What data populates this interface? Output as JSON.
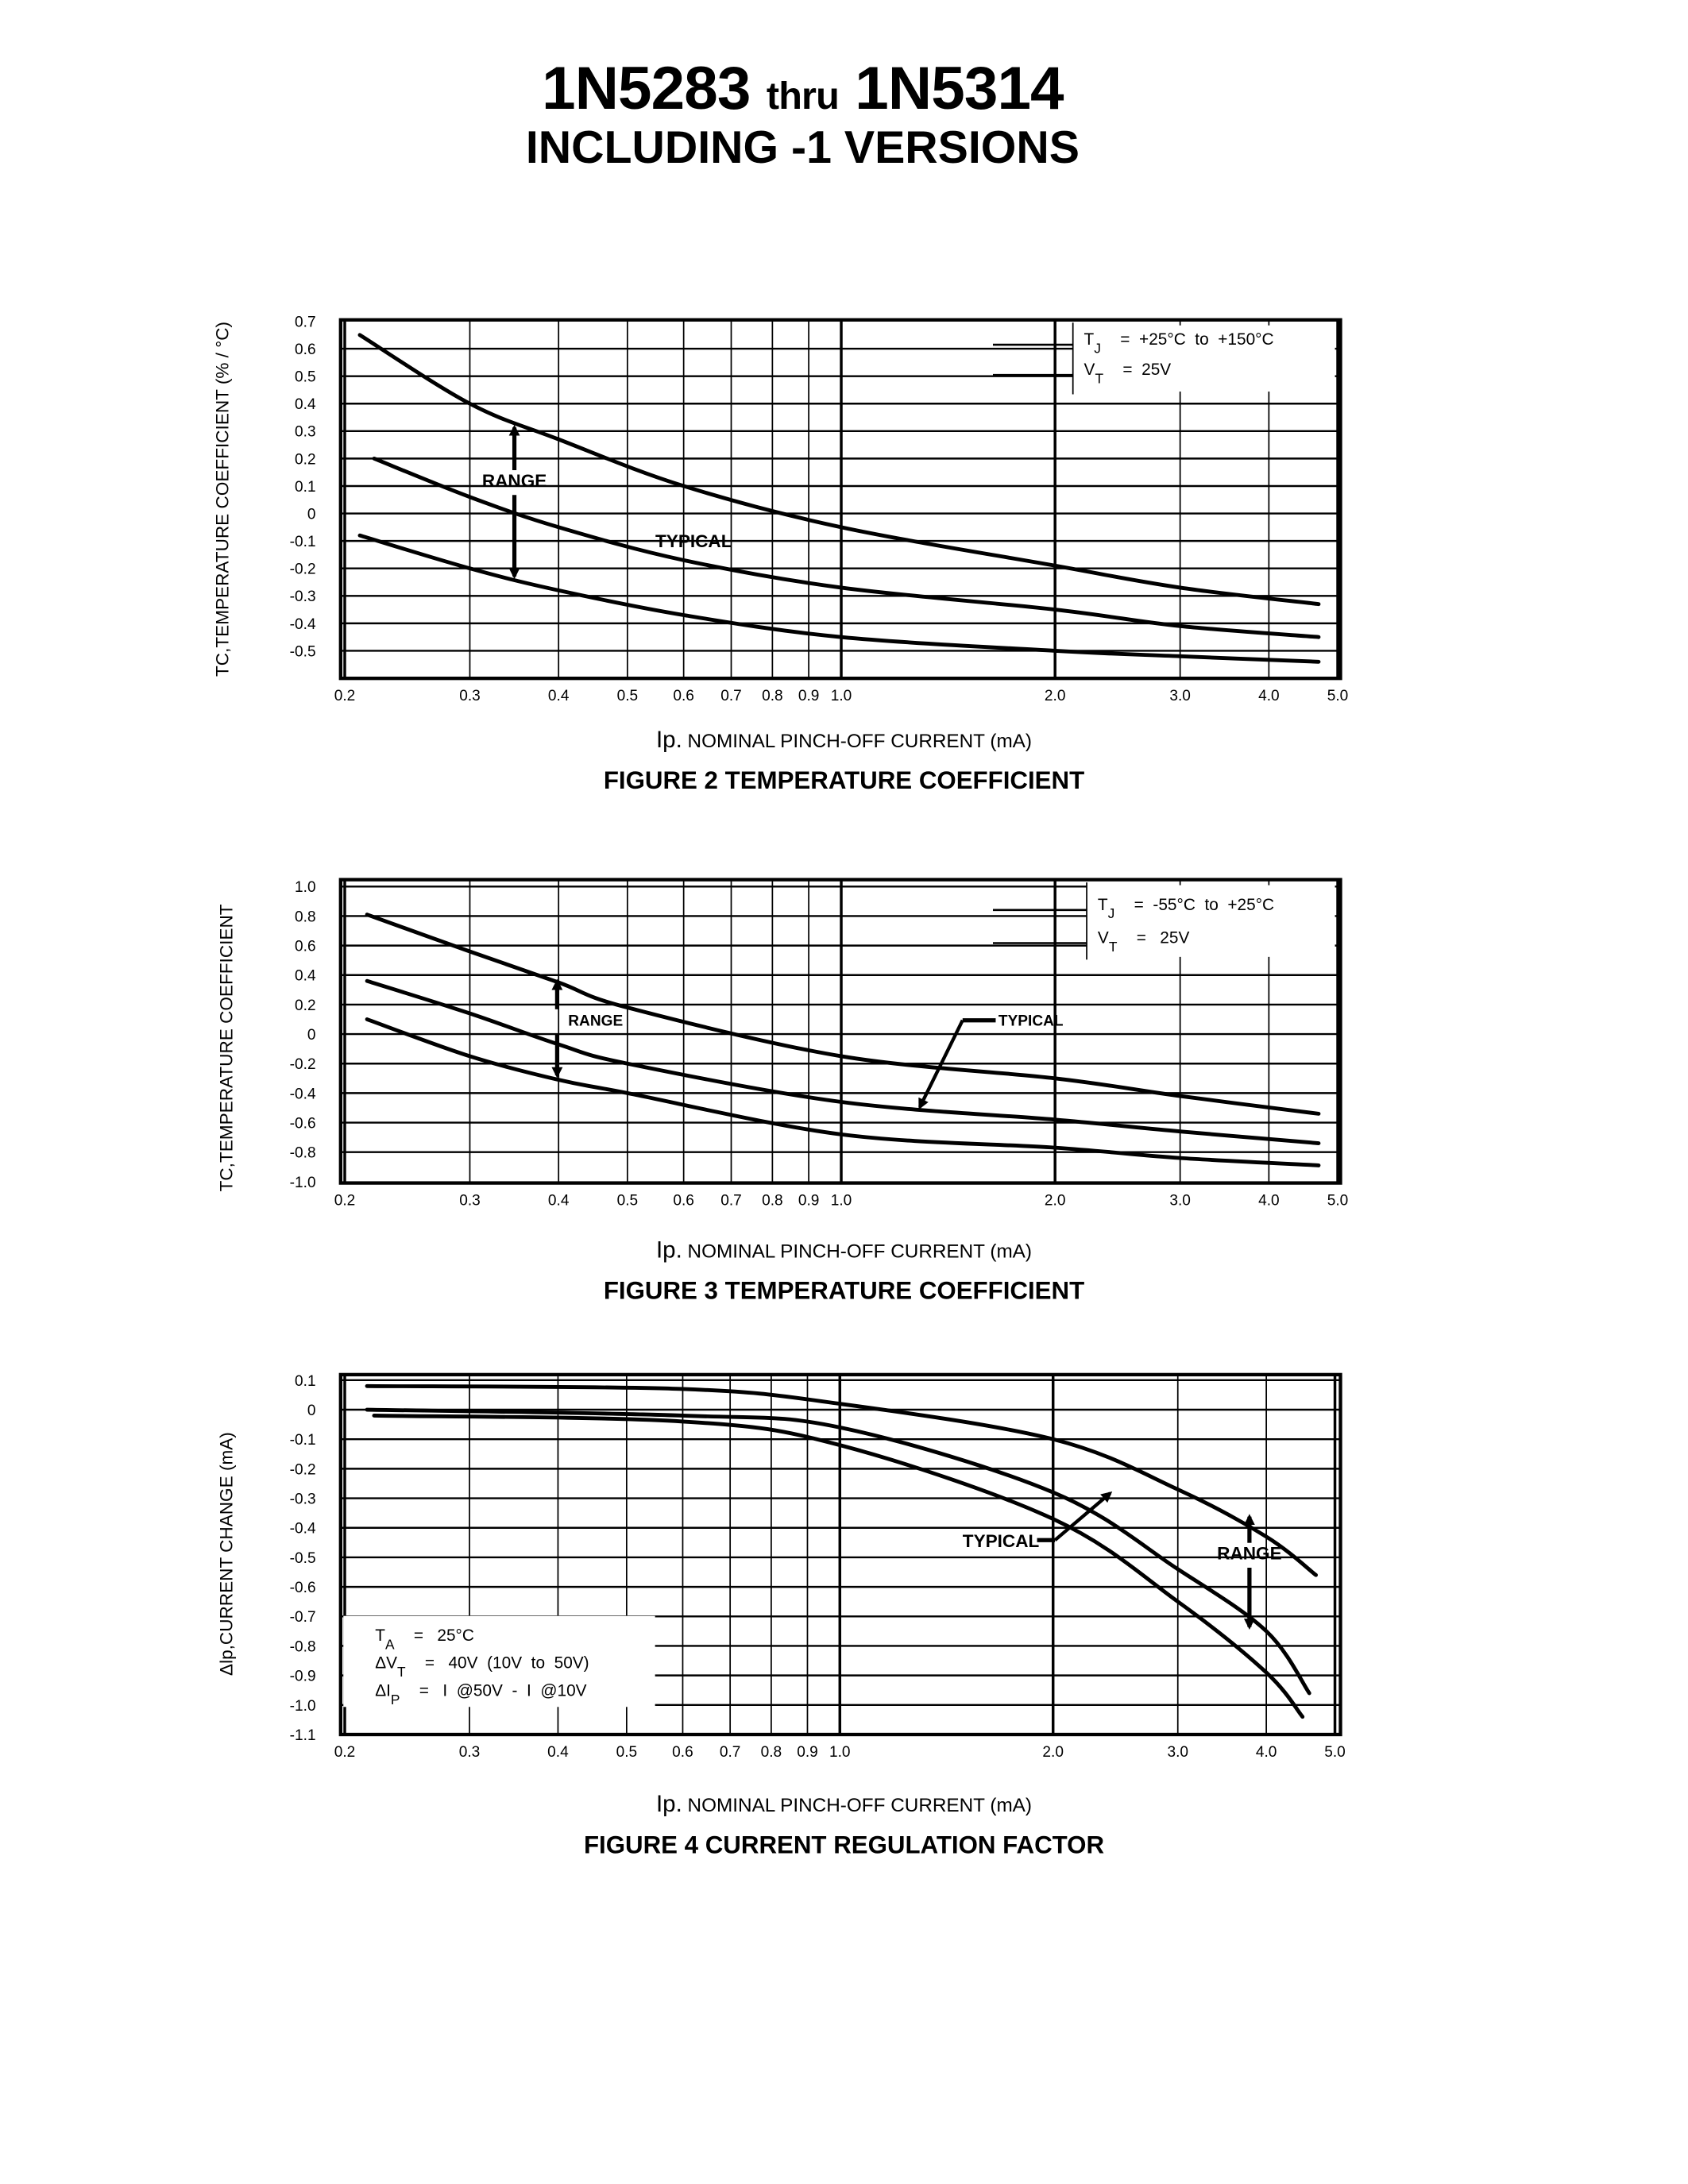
{
  "header": {
    "part_from": "1N5283",
    "thru": "thru",
    "part_to": "1N5314",
    "subtitle": "INCLUDING -1 VERSIONS"
  },
  "chart_data": [
    {
      "type": "line",
      "caption": "FIGURE 2 TEMPERATURE COEFFICIENT",
      "xlabel_prefix": "Ip.",
      "xlabel": "NOMINAL PINCH-OFF CURRENT (mA)",
      "ylabel": "TC,TEMPERATURE COEFFICIENT (% / °C)",
      "xscale": "log",
      "xlim": [
        0.2,
        5.0
      ],
      "ylim": [
        -0.6,
        0.7
      ],
      "grid": true,
      "xticks": [
        0.2,
        0.3,
        0.4,
        0.5,
        0.6,
        0.7,
        0.8,
        0.9,
        1.0,
        2.0,
        3.0,
        4.0,
        5.0
      ],
      "xtick_labels": [
        "0.2",
        "0.3",
        "0.4",
        "0.5",
        "0.6",
        "0.7",
        "0.8",
        "0.9",
        "1.0",
        "2.0",
        "3.0",
        "4.0",
        "5.0"
      ],
      "yticks": [
        0.7,
        0.6,
        0.5,
        0.4,
        0.3,
        0.2,
        0.1,
        0,
        -0.1,
        -0.2,
        -0.3,
        -0.4,
        -0.5
      ],
      "ytick_labels": [
        "0.7",
        "0.6",
        "0.5",
        "0.4",
        "0.3",
        "0.2",
        "0.1",
        "0",
        "-0.1",
        "-0.2",
        "-0.3",
        "-0.4",
        "-0.5"
      ],
      "series": [
        {
          "x": [
            0.21,
            0.3,
            0.4,
            0.6,
            1.0,
            2.0,
            3.0,
            4.7
          ],
          "y": [
            0.65,
            0.4,
            0.27,
            0.1,
            -0.05,
            -0.19,
            -0.27,
            -0.33
          ]
        },
        {
          "x": [
            0.22,
            0.3,
            0.4,
            0.6,
            1.0,
            2.0,
            3.0,
            4.7
          ],
          "y": [
            0.2,
            0.06,
            -0.05,
            -0.17,
            -0.27,
            -0.35,
            -0.41,
            -0.45
          ]
        },
        {
          "x": [
            0.21,
            0.3,
            0.4,
            0.6,
            1.0,
            2.0,
            3.0,
            4.7
          ],
          "y": [
            -0.08,
            -0.2,
            -0.28,
            -0.37,
            -0.45,
            -0.5,
            -0.52,
            -0.54
          ]
        }
      ],
      "legend": [
        {
          "sym": "T",
          "sub": "J",
          "val": "=  +25°C  to  +150°C"
        },
        {
          "sym": "V",
          "sub": "T",
          "val": "=  25V"
        }
      ],
      "annotations": {
        "range": "RANGE",
        "typical": "TYPICAL"
      }
    },
    {
      "type": "line",
      "caption": "FIGURE 3 TEMPERATURE COEFFICIENT",
      "xlabel_prefix": "Ip.",
      "xlabel": "NOMINAL PINCH-OFF CURRENT (mA)",
      "ylabel": "TC,TEMPERATURE COEFFICIENT",
      "xscale": "log",
      "xlim": [
        0.2,
        5.0
      ],
      "ylim": [
        -1.0,
        1.0
      ],
      "grid": true,
      "xticks": [
        0.2,
        0.3,
        0.4,
        0.5,
        0.6,
        0.7,
        0.8,
        0.9,
        1.0,
        2.0,
        3.0,
        4.0,
        5.0
      ],
      "xtick_labels": [
        "0.2",
        "0.3",
        "0.4",
        "0.5",
        "0.6",
        "0.7",
        "0.8",
        "0.9",
        "1.0",
        "2.0",
        "3.0",
        "4.0",
        "5.0"
      ],
      "yticks": [
        1.0,
        0.8,
        0.6,
        0.4,
        0.2,
        0,
        -0.2,
        -0.4,
        -0.6,
        -0.8,
        -1.0
      ],
      "ytick_labels": [
        "1.0",
        "0.8",
        "0.6",
        "0.4",
        "0.2",
        "0",
        "-0.2",
        "-0.4",
        "-0.6",
        "-0.8",
        "-1.0"
      ],
      "series": [
        {
          "x": [
            0.215,
            0.3,
            0.4,
            0.5,
            1.0,
            2.0,
            3.0,
            4.7
          ],
          "y": [
            0.81,
            0.56,
            0.35,
            0.18,
            -0.15,
            -0.3,
            -0.42,
            -0.54
          ]
        },
        {
          "x": [
            0.215,
            0.3,
            0.4,
            0.5,
            1.0,
            2.0,
            3.0,
            4.7
          ],
          "y": [
            0.36,
            0.14,
            -0.07,
            -0.2,
            -0.46,
            -0.58,
            -0.66,
            -0.74
          ]
        },
        {
          "x": [
            0.215,
            0.3,
            0.4,
            0.5,
            1.0,
            2.0,
            3.0,
            4.7
          ],
          "y": [
            0.1,
            -0.15,
            -0.31,
            -0.4,
            -0.68,
            -0.77,
            -0.84,
            -0.89
          ]
        }
      ],
      "legend": [
        {
          "sym": "T",
          "sub": "J",
          "val": "=  -55°C  to  +25°C"
        },
        {
          "sym": "V",
          "sub": "T",
          "val": "=   25V"
        }
      ],
      "annotations": {
        "range": "RANGE",
        "typical": "TYPICAL"
      }
    },
    {
      "type": "line",
      "caption": "FIGURE 4 CURRENT REGULATION FACTOR",
      "xlabel_prefix": "Ip.",
      "xlabel": "NOMINAL PINCH-OFF CURRENT (mA)",
      "ylabel": "Δlp,CURRENT CHANGE (mA)",
      "xscale": "log",
      "xlim": [
        0.2,
        5.0
      ],
      "ylim": [
        -1.1,
        0.1
      ],
      "grid": true,
      "xticks": [
        0.2,
        0.3,
        0.4,
        0.5,
        0.6,
        0.7,
        0.8,
        0.9,
        1.0,
        2.0,
        3.0,
        4.0,
        5.0
      ],
      "xtick_labels": [
        "0.2",
        "0.3",
        "0.4",
        "0.5",
        "0.6",
        "0.7",
        "0.8",
        "0.9",
        "1.0",
        "2.0",
        "3.0",
        "4.0",
        "5.0"
      ],
      "yticks": [
        0.1,
        0,
        -0.1,
        -0.2,
        -0.3,
        -0.4,
        -0.5,
        -0.6,
        -0.7,
        -0.8,
        -0.9,
        -1.0,
        -1.1
      ],
      "ytick_labels": [
        "0.1",
        "0",
        "-0.1",
        "-0.2",
        "-0.3",
        "-0.4",
        "-0.5",
        "-0.6",
        "-0.7",
        "-0.8",
        "-0.9",
        "-1.0",
        "-1.1"
      ],
      "series": [
        {
          "x": [
            0.215,
            0.6,
            1.0,
            2.0,
            3.0,
            4.0,
            4.7
          ],
          "y": [
            0.08,
            0.07,
            0.02,
            -0.1,
            -0.27,
            -0.43,
            -0.56
          ]
        },
        {
          "x": [
            0.215,
            0.6,
            1.0,
            2.0,
            3.0,
            4.0,
            4.6
          ],
          "y": [
            0.0,
            -0.02,
            -0.06,
            -0.28,
            -0.54,
            -0.75,
            -0.96
          ]
        },
        {
          "x": [
            0.22,
            0.6,
            1.0,
            2.0,
            3.0,
            4.0,
            4.5
          ],
          "y": [
            -0.02,
            -0.04,
            -0.12,
            -0.37,
            -0.65,
            -0.89,
            -1.04
          ]
        }
      ],
      "legend": [
        {
          "sym": "T",
          "sub": "A",
          "val": "=   25°C"
        },
        {
          "sym": "ΔV",
          "sub": "T",
          "val": "=   40V  (10V  to  50V)"
        },
        {
          "sym": "ΔI",
          "sub": "P",
          "val": "=   I  @50V  -  I  @10V"
        }
      ],
      "annotations": {
        "range": "RANGE",
        "typical": "TYPICAL"
      }
    }
  ]
}
